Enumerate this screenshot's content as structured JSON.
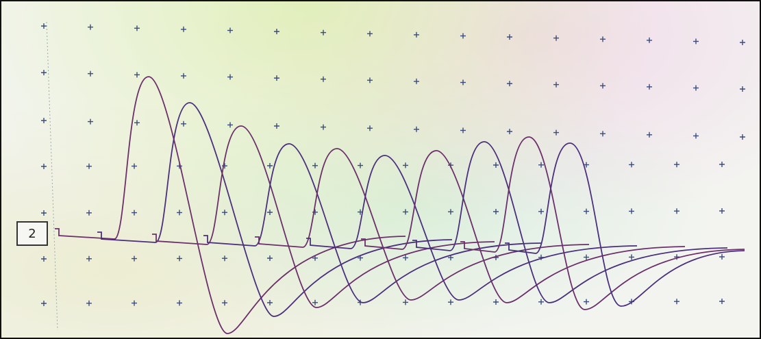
{
  "channel_label": "2"
}
